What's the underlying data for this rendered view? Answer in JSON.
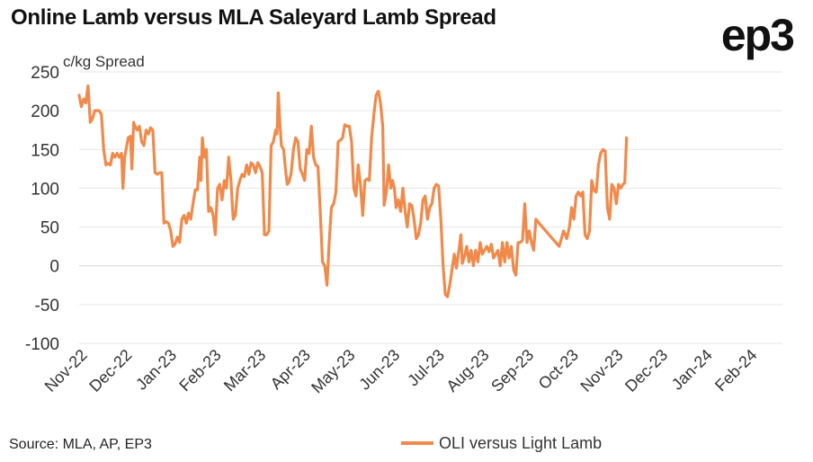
{
  "header": {
    "title": "Online Lamb versus MLA Saleyard Lamb Spread",
    "logo_text": "ep3"
  },
  "footer": {
    "source": "Source: MLA, AP, EP3"
  },
  "chart_data": {
    "type": "line",
    "title": "Online Lamb versus MLA Saleyard Lamb Spread",
    "ylabel": "c/kg Spread",
    "xlabel": "",
    "ylim": [
      -100,
      250
    ],
    "yticks": [
      -100,
      -50,
      0,
      50,
      100,
      150,
      200,
      250
    ],
    "grid": true,
    "legend_position": "bottom-right",
    "x_tick_labels": [
      "Nov-22",
      "Dec-22",
      "Jan-23",
      "Feb-23",
      "Mar-23",
      "Apr-23",
      "May-23",
      "Jun-23",
      "Jul-23",
      "Aug-23",
      "Sep-23",
      "Oct-23",
      "Nov-23",
      "Dec-23",
      "Jan-24",
      "Feb-24"
    ],
    "x_range": [
      0,
      15.75
    ],
    "series": [
      {
        "name": "OLI versus Light Lamb",
        "color": "#f08a4b",
        "points": [
          [
            0.0,
            220
          ],
          [
            0.05,
            205
          ],
          [
            0.1,
            215
          ],
          [
            0.15,
            210
          ],
          [
            0.2,
            232
          ],
          [
            0.25,
            185
          ],
          [
            0.3,
            190
          ],
          [
            0.35,
            200
          ],
          [
            0.45,
            200
          ],
          [
            0.5,
            195
          ],
          [
            0.55,
            150
          ],
          [
            0.6,
            130
          ],
          [
            0.65,
            132
          ],
          [
            0.7,
            130
          ],
          [
            0.75,
            145
          ],
          [
            0.8,
            140
          ],
          [
            0.85,
            145
          ],
          [
            0.9,
            140
          ],
          [
            0.95,
            145
          ],
          [
            0.98,
            100
          ],
          [
            1.02,
            140
          ],
          [
            1.1,
            165
          ],
          [
            1.15,
            167
          ],
          [
            1.18,
            125
          ],
          [
            1.22,
            185
          ],
          [
            1.25,
            180
          ],
          [
            1.3,
            175
          ],
          [
            1.35,
            180
          ],
          [
            1.4,
            160
          ],
          [
            1.45,
            155
          ],
          [
            1.5,
            175
          ],
          [
            1.55,
            170
          ],
          [
            1.6,
            178
          ],
          [
            1.65,
            175
          ],
          [
            1.7,
            120
          ],
          [
            1.75,
            118
          ],
          [
            1.8,
            120
          ],
          [
            1.85,
            120
          ],
          [
            1.9,
            55
          ],
          [
            1.95,
            57
          ],
          [
            2.0,
            55
          ],
          [
            2.05,
            45
          ],
          [
            2.1,
            25
          ],
          [
            2.15,
            28
          ],
          [
            2.2,
            37
          ],
          [
            2.25,
            30
          ],
          [
            2.3,
            60
          ],
          [
            2.35,
            65
          ],
          [
            2.4,
            55
          ],
          [
            2.45,
            68
          ],
          [
            2.5,
            60
          ],
          [
            2.55,
            80
          ],
          [
            2.6,
            98
          ],
          [
            2.65,
            98
          ],
          [
            2.7,
            140
          ],
          [
            2.73,
            110
          ],
          [
            2.76,
            165
          ],
          [
            2.8,
            140
          ],
          [
            2.85,
            150
          ],
          [
            2.9,
            70
          ],
          [
            2.95,
            75
          ],
          [
            3.0,
            65
          ],
          [
            3.05,
            40
          ],
          [
            3.1,
            100
          ],
          [
            3.15,
            105
          ],
          [
            3.2,
            85
          ],
          [
            3.25,
            110
          ],
          [
            3.3,
            100
          ],
          [
            3.35,
            140
          ],
          [
            3.4,
            110
          ],
          [
            3.45,
            60
          ],
          [
            3.5,
            65
          ],
          [
            3.55,
            100
          ],
          [
            3.6,
            110
          ],
          [
            3.65,
            118
          ],
          [
            3.7,
            115
          ],
          [
            3.75,
            130
          ],
          [
            3.8,
            118
          ],
          [
            3.85,
            133
          ],
          [
            3.9,
            130
          ],
          [
            3.95,
            120
          ],
          [
            4.0,
            133
          ],
          [
            4.05,
            128
          ],
          [
            4.1,
            120
          ],
          [
            4.15,
            40
          ],
          [
            4.2,
            40
          ],
          [
            4.25,
            45
          ],
          [
            4.3,
            155
          ],
          [
            4.35,
            160
          ],
          [
            4.4,
            175
          ],
          [
            4.43,
            170
          ],
          [
            4.46,
            223
          ],
          [
            4.5,
            180
          ],
          [
            4.53,
            155
          ],
          [
            4.58,
            150
          ],
          [
            4.62,
            125
          ],
          [
            4.66,
            105
          ],
          [
            4.7,
            108
          ],
          [
            4.75,
            120
          ],
          [
            4.8,
            150
          ],
          [
            4.85,
            165
          ],
          [
            4.9,
            160
          ],
          [
            4.95,
            125
          ],
          [
            5.0,
            118
          ],
          [
            5.05,
            110
          ],
          [
            5.1,
            150
          ],
          [
            5.15,
            145
          ],
          [
            5.2,
            180
          ],
          [
            5.25,
            140
          ],
          [
            5.3,
            130
          ],
          [
            5.35,
            128
          ],
          [
            5.4,
            70
          ],
          [
            5.45,
            5
          ],
          [
            5.5,
            0
          ],
          [
            5.55,
            -25
          ],
          [
            5.6,
            30
          ],
          [
            5.65,
            75
          ],
          [
            5.7,
            80
          ],
          [
            5.75,
            95
          ],
          [
            5.8,
            160
          ],
          [
            5.85,
            162
          ],
          [
            5.9,
            165
          ],
          [
            5.95,
            182
          ],
          [
            6.0,
            180
          ],
          [
            6.05,
            180
          ],
          [
            6.1,
            160
          ],
          [
            6.15,
            100
          ],
          [
            6.2,
            90
          ],
          [
            6.25,
            130
          ],
          [
            6.3,
            105
          ],
          [
            6.35,
            65
          ],
          [
            6.4,
            110
          ],
          [
            6.45,
            112
          ],
          [
            6.5,
            110
          ],
          [
            6.55,
            165
          ],
          [
            6.6,
            195
          ],
          [
            6.65,
            220
          ],
          [
            6.7,
            225
          ],
          [
            6.75,
            210
          ],
          [
            6.8,
            180
          ],
          [
            6.83,
            78
          ],
          [
            6.88,
            95
          ],
          [
            6.93,
            130
          ],
          [
            6.98,
            100
          ],
          [
            7.02,
            110
          ],
          [
            7.06,
            100
          ],
          [
            7.1,
            75
          ],
          [
            7.15,
            85
          ],
          [
            7.2,
            70
          ],
          [
            7.25,
            100
          ],
          [
            7.3,
            70
          ],
          [
            7.35,
            50
          ],
          [
            7.4,
            80
          ],
          [
            7.45,
            78
          ],
          [
            7.5,
            60
          ],
          [
            7.55,
            35
          ],
          [
            7.6,
            40
          ],
          [
            7.65,
            55
          ],
          [
            7.7,
            85
          ],
          [
            7.75,
            90
          ],
          [
            7.8,
            60
          ],
          [
            7.85,
            75
          ],
          [
            7.9,
            80
          ],
          [
            7.95,
            100
          ],
          [
            8.0,
            105
          ],
          [
            8.05,
            103
          ],
          [
            8.1,
            60
          ],
          [
            8.15,
            0
          ],
          [
            8.2,
            -37
          ],
          [
            8.25,
            -40
          ],
          [
            8.3,
            -25
          ],
          [
            8.35,
            -5
          ],
          [
            8.4,
            15
          ],
          [
            8.45,
            -3
          ],
          [
            8.5,
            18
          ],
          [
            8.55,
            40
          ],
          [
            8.58,
            3
          ],
          [
            8.63,
            12
          ],
          [
            8.68,
            25
          ],
          [
            8.73,
            5
          ],
          [
            8.78,
            20
          ],
          [
            8.83,
            0
          ],
          [
            8.88,
            20
          ],
          [
            8.93,
            5
          ],
          [
            8.98,
            30
          ],
          [
            9.03,
            15
          ],
          [
            9.08,
            20
          ],
          [
            9.13,
            25
          ],
          [
            9.18,
            18
          ],
          [
            9.23,
            28
          ],
          [
            9.28,
            10
          ],
          [
            9.33,
            15
          ],
          [
            9.38,
            20
          ],
          [
            9.43,
            0
          ],
          [
            9.48,
            30
          ],
          [
            9.53,
            5
          ],
          [
            9.58,
            30
          ],
          [
            9.63,
            10
          ],
          [
            9.68,
            25
          ],
          [
            9.73,
            -5
          ],
          [
            9.78,
            -12
          ],
          [
            9.83,
            30
          ],
          [
            9.88,
            30
          ],
          [
            9.93,
            33
          ],
          [
            9.98,
            80
          ],
          [
            10.03,
            30
          ],
          [
            10.08,
            45
          ],
          [
            10.13,
            30
          ],
          [
            10.18,
            20
          ],
          [
            10.23,
            60
          ],
          [
            10.3,
            55
          ],
          [
            10.45,
            45
          ],
          [
            10.6,
            35
          ],
          [
            10.75,
            25
          ],
          [
            10.85,
            45
          ],
          [
            10.92,
            35
          ],
          [
            10.98,
            50
          ],
          [
            11.03,
            75
          ],
          [
            11.08,
            60
          ],
          [
            11.13,
            90
          ],
          [
            11.18,
            95
          ],
          [
            11.23,
            90
          ],
          [
            11.28,
            95
          ],
          [
            11.33,
            40
          ],
          [
            11.38,
            35
          ],
          [
            11.43,
            45
          ],
          [
            11.48,
            110
          ],
          [
            11.53,
            97
          ],
          [
            11.58,
            95
          ],
          [
            11.63,
            130
          ],
          [
            11.68,
            145
          ],
          [
            11.73,
            150
          ],
          [
            11.78,
            148
          ],
          [
            11.83,
            75
          ],
          [
            11.88,
            60
          ],
          [
            11.93,
            105
          ],
          [
            11.98,
            100
          ],
          [
            12.03,
            80
          ],
          [
            12.08,
            105
          ],
          [
            12.13,
            100
          ],
          [
            12.18,
            105
          ],
          [
            12.22,
            107
          ],
          [
            12.26,
            165
          ]
        ]
      }
    ]
  }
}
